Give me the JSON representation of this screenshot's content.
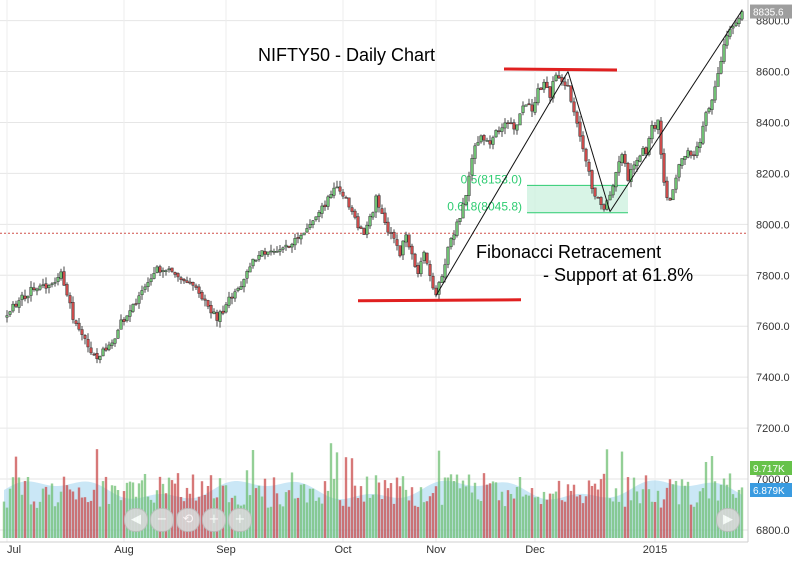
{
  "chart_data": {
    "type": "candlestick",
    "title": "NIFTY50 - Daily Chart",
    "xlabel": "",
    "ylabel": "",
    "ylim": [
      6750,
      8850
    ],
    "x_ticks": [
      "Jul",
      "Aug",
      "Sep",
      "Oct",
      "Nov",
      "Dec",
      "2015"
    ],
    "y_ticks": [
      "6800.0",
      "7000.0",
      "7200.0",
      "7400.0",
      "7600.0",
      "7800.0",
      "8000.0",
      "8200.0",
      "8400.0",
      "8600.0",
      "8800.0"
    ],
    "last_price_label": "8835.6",
    "volume_labels": [
      "9.717K",
      "6.879K"
    ],
    "close_path": [
      [
        0,
        7630
      ],
      [
        5,
        7700
      ],
      [
        10,
        7750
      ],
      [
        15,
        7760
      ],
      [
        19,
        7800
      ],
      [
        23,
        7640
      ],
      [
        27,
        7540
      ],
      [
        31,
        7480
      ],
      [
        35,
        7520
      ],
      [
        39,
        7610
      ],
      [
        43,
        7680
      ],
      [
        47,
        7750
      ],
      [
        51,
        7820
      ],
      [
        55,
        7830
      ],
      [
        59,
        7790
      ],
      [
        63,
        7760
      ],
      [
        67,
        7690
      ],
      [
        71,
        7630
      ],
      [
        75,
        7700
      ],
      [
        79,
        7760
      ],
      [
        83,
        7860
      ],
      [
        87,
        7890
      ],
      [
        91,
        7900
      ],
      [
        95,
        7920
      ],
      [
        99,
        7950
      ],
      [
        103,
        8020
      ],
      [
        107,
        8080
      ],
      [
        110,
        8150
      ],
      [
        112,
        8140
      ],
      [
        114,
        8100
      ],
      [
        116,
        8060
      ],
      [
        118,
        8000
      ],
      [
        120,
        7960
      ],
      [
        122,
        8020
      ],
      [
        124,
        8100
      ],
      [
        126,
        8050
      ],
      [
        128,
        7980
      ],
      [
        130,
        7950
      ],
      [
        132,
        7890
      ],
      [
        134,
        7960
      ],
      [
        136,
        7870
      ],
      [
        138,
        7820
      ],
      [
        140,
        7880
      ],
      [
        142,
        7800
      ],
      [
        144,
        7720
      ],
      [
        146,
        7800
      ],
      [
        148,
        7900
      ],
      [
        150,
        7970
      ],
      [
        152,
        8030
      ],
      [
        154,
        8120
      ],
      [
        156,
        8260
      ],
      [
        158,
        8330
      ],
      [
        160,
        8340
      ],
      [
        162,
        8320
      ],
      [
        164,
        8360
      ],
      [
        166,
        8380
      ],
      [
        168,
        8400
      ],
      [
        170,
        8370
      ],
      [
        172,
        8430
      ],
      [
        174,
        8480
      ],
      [
        176,
        8450
      ],
      [
        178,
        8520
      ],
      [
        180,
        8560
      ],
      [
        182,
        8510
      ],
      [
        184,
        8590
      ],
      [
        186,
        8550
      ],
      [
        188,
        8530
      ],
      [
        190,
        8450
      ],
      [
        192,
        8350
      ],
      [
        194,
        8250
      ],
      [
        196,
        8150
      ],
      [
        198,
        8100
      ],
      [
        200,
        8050
      ],
      [
        202,
        8120
      ],
      [
        204,
        8200
      ],
      [
        206,
        8270
      ],
      [
        208,
        8180
      ],
      [
        210,
        8240
      ],
      [
        212,
        8280
      ],
      [
        214,
        8290
      ],
      [
        216,
        8380
      ],
      [
        218,
        8400
      ],
      [
        219,
        8280
      ],
      [
        220,
        8150
      ],
      [
        222,
        8080
      ],
      [
        224,
        8180
      ],
      [
        226,
        8260
      ],
      [
        228,
        8300
      ],
      [
        230,
        8260
      ],
      [
        232,
        8320
      ],
      [
        234,
        8440
      ],
      [
        236,
        8480
      ],
      [
        238,
        8600
      ],
      [
        240,
        8700
      ],
      [
        242,
        8760
      ],
      [
        244,
        8800
      ],
      [
        246,
        8835.6
      ]
    ],
    "fibonacci": [
      {
        "label": "0.5(8153.0)",
        "value": 8153.0
      },
      {
        "label": "0.618(8045.8)",
        "value": 8045.8
      }
    ],
    "reference_line": 7965,
    "support_line": 7700,
    "resistance_line": 8610,
    "trendlines": [
      {
        "from": [
          144,
          7720
        ],
        "to": [
          188,
          8600
        ]
      },
      {
        "from": [
          188,
          8600
        ],
        "to": [
          202,
          8050
        ]
      },
      {
        "from": [
          202,
          8050
        ],
        "to": [
          246,
          8840
        ]
      }
    ]
  },
  "annotations": {
    "title": "NIFTY50 - Daily Chart",
    "fib_line1": "Fibonacci Retracement",
    "fib_line2": "- Support at 61.8%"
  },
  "navigator": {
    "buttons": [
      "◀",
      "−",
      "⟲",
      "+",
      "+"
    ],
    "right_button": "▶"
  },
  "colors": {
    "up": "#6fbf73",
    "down": "#c94b4b",
    "annotation_line": "#e02020",
    "fib_fill": "#c8f0dc",
    "fib_line": "#2ecc71",
    "ref_line": "#d0504a",
    "volume_area": "#9fd3ef",
    "last_price": "#9e9e9e",
    "vol_label1": "#66c24a",
    "vol_label2": "#3a9be0"
  }
}
